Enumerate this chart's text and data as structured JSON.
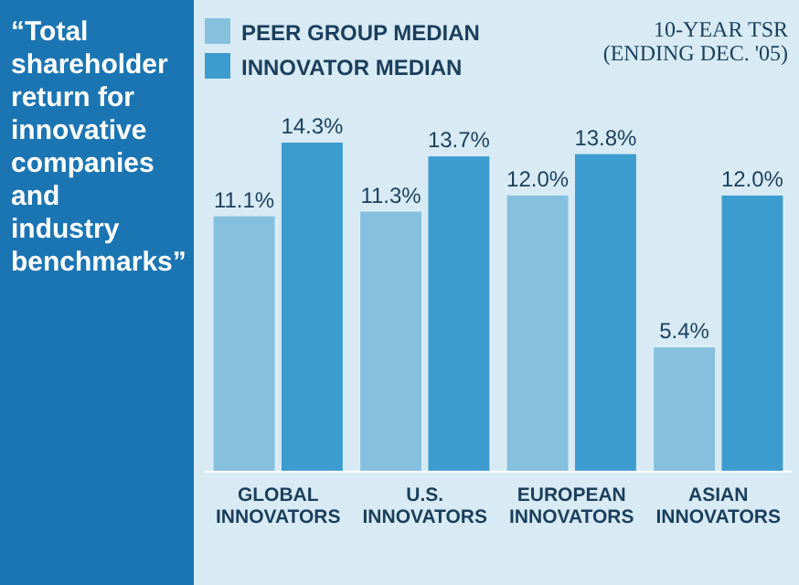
{
  "chart_data": {
    "type": "bar",
    "title": "“Total shareholder return for innovative companies and industry benchmarks”",
    "subtitle": "10-YEAR TSR (ENDING DEC. '05)",
    "categories": [
      "GLOBAL INNOVATORS",
      "U.S. INNOVATORS",
      "EUROPEAN INNOVATORS",
      "ASIAN INNOVATORS"
    ],
    "series": [
      {
        "name": "PEER GROUP MEDIAN",
        "color": "#86c0df",
        "values": [
          11.1,
          11.3,
          12.0,
          5.4
        ],
        "value_labels": [
          "11.1%",
          "11.3%",
          "12.0%",
          "5.4%"
        ]
      },
      {
        "name": "INNOVATOR MEDIAN",
        "color": "#3d9ccf",
        "values": [
          14.3,
          13.7,
          13.8,
          12.0
        ],
        "value_labels": [
          "14.3%",
          "13.7%",
          "13.8%",
          "12.0%"
        ]
      }
    ],
    "legend": "top left"
  }
}
